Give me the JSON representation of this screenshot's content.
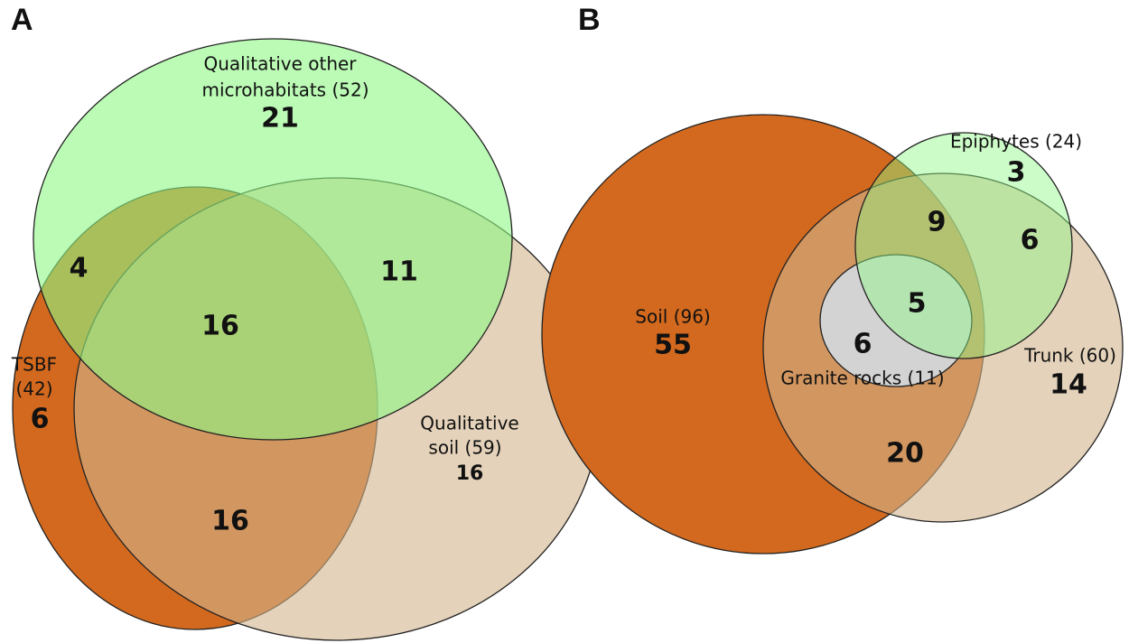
{
  "panel_a": {
    "label": "A",
    "sets": [
      {
        "lines": [
          "Qualitative other",
          "microhabitats (52)"
        ]
      },
      {
        "lines": [
          "TSBF",
          "(42)"
        ]
      },
      {
        "lines": [
          "Qualitative",
          "soil (59)"
        ]
      }
    ],
    "regions": [
      21,
      4,
      11,
      16,
      6,
      16,
      16
    ]
  },
  "panel_b": {
    "label": "B",
    "sets": [
      "Epiphytes (24)",
      "Soil (96)",
      "Trunk (60)",
      "Granite rocks (11)"
    ],
    "regions": [
      3,
      9,
      6,
      55,
      5,
      6,
      14,
      20
    ]
  }
}
